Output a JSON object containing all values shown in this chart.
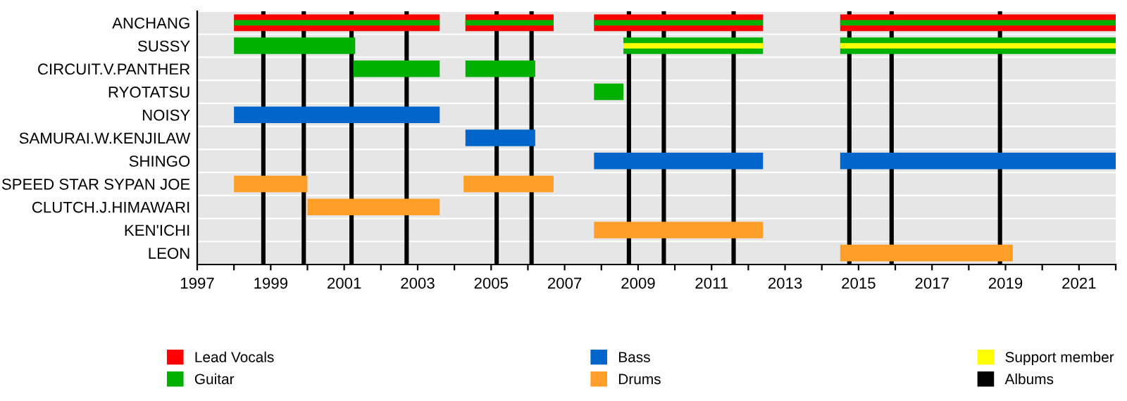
{
  "chart_data": {
    "type": "bar",
    "orientation": "horizontal",
    "categories": [
      "ANCHANG",
      "SUSSY",
      "CIRCUIT.V.PANTHER",
      "RYOTATSU",
      "NOISY",
      "SAMURAI.W.KENJILAW",
      "SHINGO",
      "SPEED STAR SYPAN JOE",
      "CLUTCH.J.HIMAWARI",
      "KEN'ICHI",
      "LEON"
    ],
    "series": [
      {
        "name": "Lead Vocals",
        "color": "#ff0000",
        "base": [
          1998.0,
          null,
          null,
          null,
          null,
          null,
          null,
          null,
          null,
          null,
          null
        ],
        "values": [
          5.6,
          null,
          null,
          null,
          null,
          null,
          null,
          null,
          null,
          null,
          null
        ]
      },
      {
        "color": "#ff0000",
        "base": [
          2004.3,
          null,
          null,
          null,
          null,
          null,
          null,
          null,
          null,
          null,
          null
        ],
        "values": [
          2.4,
          null,
          null,
          null,
          null,
          null,
          null,
          null,
          null,
          null,
          null
        ]
      },
      {
        "color": "#ff0000",
        "base": [
          2007.8,
          null,
          null,
          null,
          null,
          null,
          null,
          null,
          null,
          null,
          null
        ],
        "values": [
          4.6,
          null,
          null,
          null,
          null,
          null,
          null,
          null,
          null,
          null,
          null
        ]
      },
      {
        "color": "#ff0000",
        "base": [
          2014.5,
          null,
          null,
          null,
          null,
          null,
          null,
          null,
          null,
          null,
          null
        ],
        "values": [
          7.5,
          null,
          null,
          null,
          null,
          null,
          null,
          null,
          null,
          null,
          null
        ]
      },
      {
        "name": "Guitar",
        "color": "#00b000",
        "base": [
          1998.0,
          1998.0,
          2001.25,
          2007.8,
          null,
          null,
          null,
          null,
          null,
          null,
          null
        ],
        "values": [
          5.6,
          3.3,
          2.35,
          0.8,
          null,
          null,
          null,
          null,
          null,
          null,
          null
        ]
      },
      {
        "color": "#00b000",
        "base": [
          2004.3,
          2008.6,
          2004.3,
          null,
          null,
          null,
          null,
          null,
          null,
          null,
          null
        ],
        "values": [
          2.4,
          3.8,
          1.9,
          null,
          null,
          null,
          null,
          null,
          null,
          null,
          null
        ]
      },
      {
        "color": "#00b000",
        "base": [
          2007.8,
          2014.5,
          null,
          null,
          null,
          null,
          null,
          null,
          null,
          null,
          null
        ],
        "values": [
          4.6,
          7.5,
          null,
          null,
          null,
          null,
          null,
          null,
          null,
          null,
          null
        ]
      },
      {
        "color": "#00b000",
        "base": [
          2014.5,
          null,
          null,
          null,
          null,
          null,
          null,
          null,
          null,
          null,
          null
        ],
        "values": [
          7.5,
          null,
          null,
          null,
          null,
          null,
          null,
          null,
          null,
          null,
          null
        ]
      },
      {
        "name": "Bass",
        "color": "#0066cc",
        "base": [
          null,
          null,
          null,
          null,
          1998.0,
          2004.3,
          2007.8,
          null,
          null,
          null,
          null
        ],
        "values": [
          null,
          null,
          null,
          null,
          5.6,
          1.9,
          4.6,
          null,
          null,
          null,
          null
        ]
      },
      {
        "color": "#0066cc",
        "base": [
          null,
          null,
          null,
          null,
          null,
          null,
          2014.5,
          null,
          null,
          null,
          null
        ],
        "values": [
          null,
          null,
          null,
          null,
          null,
          null,
          7.5,
          null,
          null,
          null,
          null
        ]
      },
      {
        "name": "Drums",
        "color": "#ff9f29",
        "base": [
          null,
          null,
          null,
          null,
          null,
          null,
          null,
          1998.0,
          2000.0,
          2007.8,
          2014.5
        ],
        "values": [
          null,
          null,
          null,
          null,
          null,
          null,
          null,
          2.0,
          3.6,
          4.6,
          4.7
        ]
      },
      {
        "color": "#ff9f29",
        "base": [
          null,
          null,
          null,
          null,
          null,
          null,
          null,
          2004.25,
          null,
          null,
          null
        ],
        "values": [
          null,
          null,
          null,
          null,
          null,
          null,
          null,
          2.45,
          null,
          null,
          null
        ]
      },
      {
        "name": "Support member",
        "color": "#ffff00",
        "base": [
          null,
          2008.6,
          null,
          null,
          null,
          null,
          null,
          null,
          null,
          null,
          null
        ],
        "values": [
          null,
          3.8,
          null,
          null,
          null,
          null,
          null,
          null,
          null,
          null,
          null
        ]
      },
      {
        "color": "#ffff00",
        "base": [
          null,
          2014.5,
          null,
          null,
          null,
          null,
          null,
          null,
          null,
          null,
          null
        ],
        "values": [
          null,
          7.5,
          null,
          null,
          null,
          null,
          null,
          null,
          null,
          null,
          null
        ]
      }
    ],
    "ref_lines": [
      {
        "axis": "x",
        "value": 1998.8,
        "label": "Albums",
        "color": "#000000"
      },
      {
        "axis": "x",
        "value": 1999.9,
        "color": "#000000"
      },
      {
        "axis": "x",
        "value": 2001.2,
        "color": "#000000"
      },
      {
        "axis": "x",
        "value": 2002.7,
        "color": "#000000"
      },
      {
        "axis": "x",
        "value": 2005.15,
        "color": "#000000"
      },
      {
        "axis": "x",
        "value": 2006.1,
        "color": "#000000"
      },
      {
        "axis": "x",
        "value": 2008.75,
        "color": "#000000"
      },
      {
        "axis": "x",
        "value": 2009.7,
        "color": "#000000"
      },
      {
        "axis": "x",
        "value": 2011.6,
        "color": "#000000"
      },
      {
        "axis": "x",
        "value": 2014.75,
        "color": "#000000"
      },
      {
        "axis": "x",
        "value": 2015.9,
        "color": "#000000"
      },
      {
        "axis": "x",
        "value": 2018.85,
        "color": "#000000"
      }
    ],
    "xlim": [
      1997,
      2022
    ],
    "xticks": [
      1997,
      {
        "value": 1998,
        "label": null
      },
      1999,
      {
        "value": 2000,
        "label": null
      },
      2001,
      {
        "value": 2002,
        "label": null
      },
      2003,
      {
        "value": 2004,
        "label": null
      },
      2005,
      {
        "value": 2006,
        "label": null
      },
      2007,
      {
        "value": 2008,
        "label": null
      },
      2009,
      {
        "value": 2010,
        "label": null
      },
      2011,
      {
        "value": 2012,
        "label": null
      },
      2013,
      {
        "value": 2014,
        "label": null
      },
      2015,
      {
        "value": 2016,
        "label": null
      },
      2017,
      {
        "value": 2018,
        "label": null
      },
      2019,
      {
        "value": 2020,
        "label": null
      },
      2021,
      {
        "value": 2022,
        "label": null
      }
    ],
    "grid": "y",
    "legend": "bottom"
  }
}
